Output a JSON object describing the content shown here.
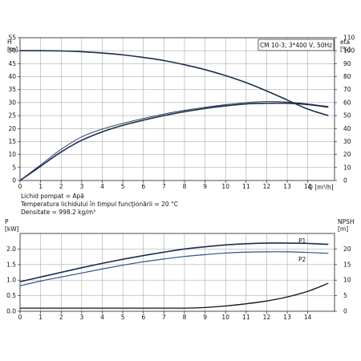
{
  "chart_data": [
    {
      "type": "line",
      "title": "CM 10-3, 3*400 V, 50Hz",
      "ylabel_left": "H\n[m]",
      "ylabel_right": "eta\n[%]",
      "xlabel": "Q [m³/h]",
      "x_ticks": [
        0,
        1,
        2,
        3,
        4,
        5,
        6,
        7,
        8,
        9,
        10,
        11,
        12,
        13,
        14
      ],
      "y_left_ticks": [
        0,
        5,
        10,
        15,
        20,
        25,
        30,
        35,
        40,
        45,
        50,
        55
      ],
      "y_right_ticks": [
        0,
        10,
        20,
        30,
        40,
        50,
        60,
        70,
        80,
        90,
        100,
        110
      ],
      "xlim": [
        0,
        15.3
      ],
      "ylim_left": [
        0,
        55
      ],
      "ylim_right": [
        0,
        110
      ],
      "grid": true,
      "series": [
        {
          "axis": "left",
          "style": "dark",
          "x": [
            0,
            1,
            2,
            3,
            4,
            5,
            6,
            7,
            8,
            9,
            10,
            11,
            12,
            13,
            14,
            15
          ],
          "y": [
            50,
            50,
            49.9,
            49.6,
            49.1,
            48.4,
            47.4,
            46.2,
            44.6,
            42.7,
            40.4,
            37.7,
            34.5,
            31,
            27.5,
            25
          ]
        },
        {
          "axis": "right",
          "style": "dark",
          "x": [
            0,
            1,
            2,
            3,
            4,
            5,
            6,
            7,
            8,
            9,
            10,
            11,
            12,
            13,
            14,
            15
          ],
          "y": [
            0,
            11,
            22,
            31,
            37.5,
            42.5,
            46.5,
            50,
            53,
            55.5,
            57.5,
            59,
            59.5,
            59.5,
            58.5,
            56.5
          ]
        },
        {
          "axis": "left",
          "style": "thin",
          "x": [
            0,
            1,
            2,
            3,
            4,
            5,
            6,
            7,
            8,
            9,
            10,
            11,
            12,
            13,
            14,
            15
          ],
          "y": [
            0,
            6,
            12,
            16.8,
            19.8,
            22,
            23.9,
            25.6,
            27,
            28.2,
            29.2,
            30,
            30.4,
            30.2,
            29.5,
            28.5
          ]
        }
      ],
      "annotations": [
        "Lichid pompat = Apă",
        "Temperatura lichidului în timpul funcţionării = 20 °C",
        "Densitate = 998.2 kg/m³"
      ]
    },
    {
      "type": "line",
      "ylabel_left": "P\n[kW]",
      "ylabel_right": "NPSH\n[m]",
      "x_ticks": [
        0,
        1,
        2,
        3,
        4,
        5,
        6,
        7,
        8,
        9,
        10,
        11,
        12,
        13,
        14
      ],
      "y_left_ticks": [
        "0.0",
        "0.5",
        "1.0",
        "1.5",
        "2.0"
      ],
      "y_right_ticks": [
        0,
        5,
        10,
        15,
        20
      ],
      "xlim": [
        0,
        15.3
      ],
      "ylim_left": [
        0,
        2.5
      ],
      "ylim_right": [
        0,
        25
      ],
      "grid": true,
      "series": [
        {
          "name": "P1",
          "axis": "left",
          "style": "dark",
          "x": [
            0,
            1,
            2,
            3,
            4,
            5,
            6,
            7,
            8,
            9,
            10,
            11,
            12,
            13,
            14,
            15
          ],
          "y": [
            0.95,
            1.1,
            1.25,
            1.4,
            1.54,
            1.67,
            1.79,
            1.9,
            2.0,
            2.07,
            2.13,
            2.17,
            2.19,
            2.19,
            2.18,
            2.15
          ]
        },
        {
          "name": "P2",
          "axis": "left",
          "style": "blue",
          "x": [
            0,
            1,
            2,
            3,
            4,
            5,
            6,
            7,
            8,
            9,
            10,
            11,
            12,
            13,
            14,
            15
          ],
          "y": [
            0.82,
            0.97,
            1.1,
            1.23,
            1.36,
            1.48,
            1.59,
            1.68,
            1.76,
            1.82,
            1.87,
            1.9,
            1.91,
            1.91,
            1.89,
            1.86
          ]
        },
        {
          "axis": "right",
          "style": "black",
          "x": [
            0,
            3,
            6,
            8,
            9,
            10,
            11,
            12,
            13,
            14,
            15
          ],
          "y": [
            1,
            1,
            1,
            1,
            1.2,
            1.7,
            2.4,
            3.3,
            4.6,
            6.4,
            9
          ]
        }
      ]
    }
  ]
}
